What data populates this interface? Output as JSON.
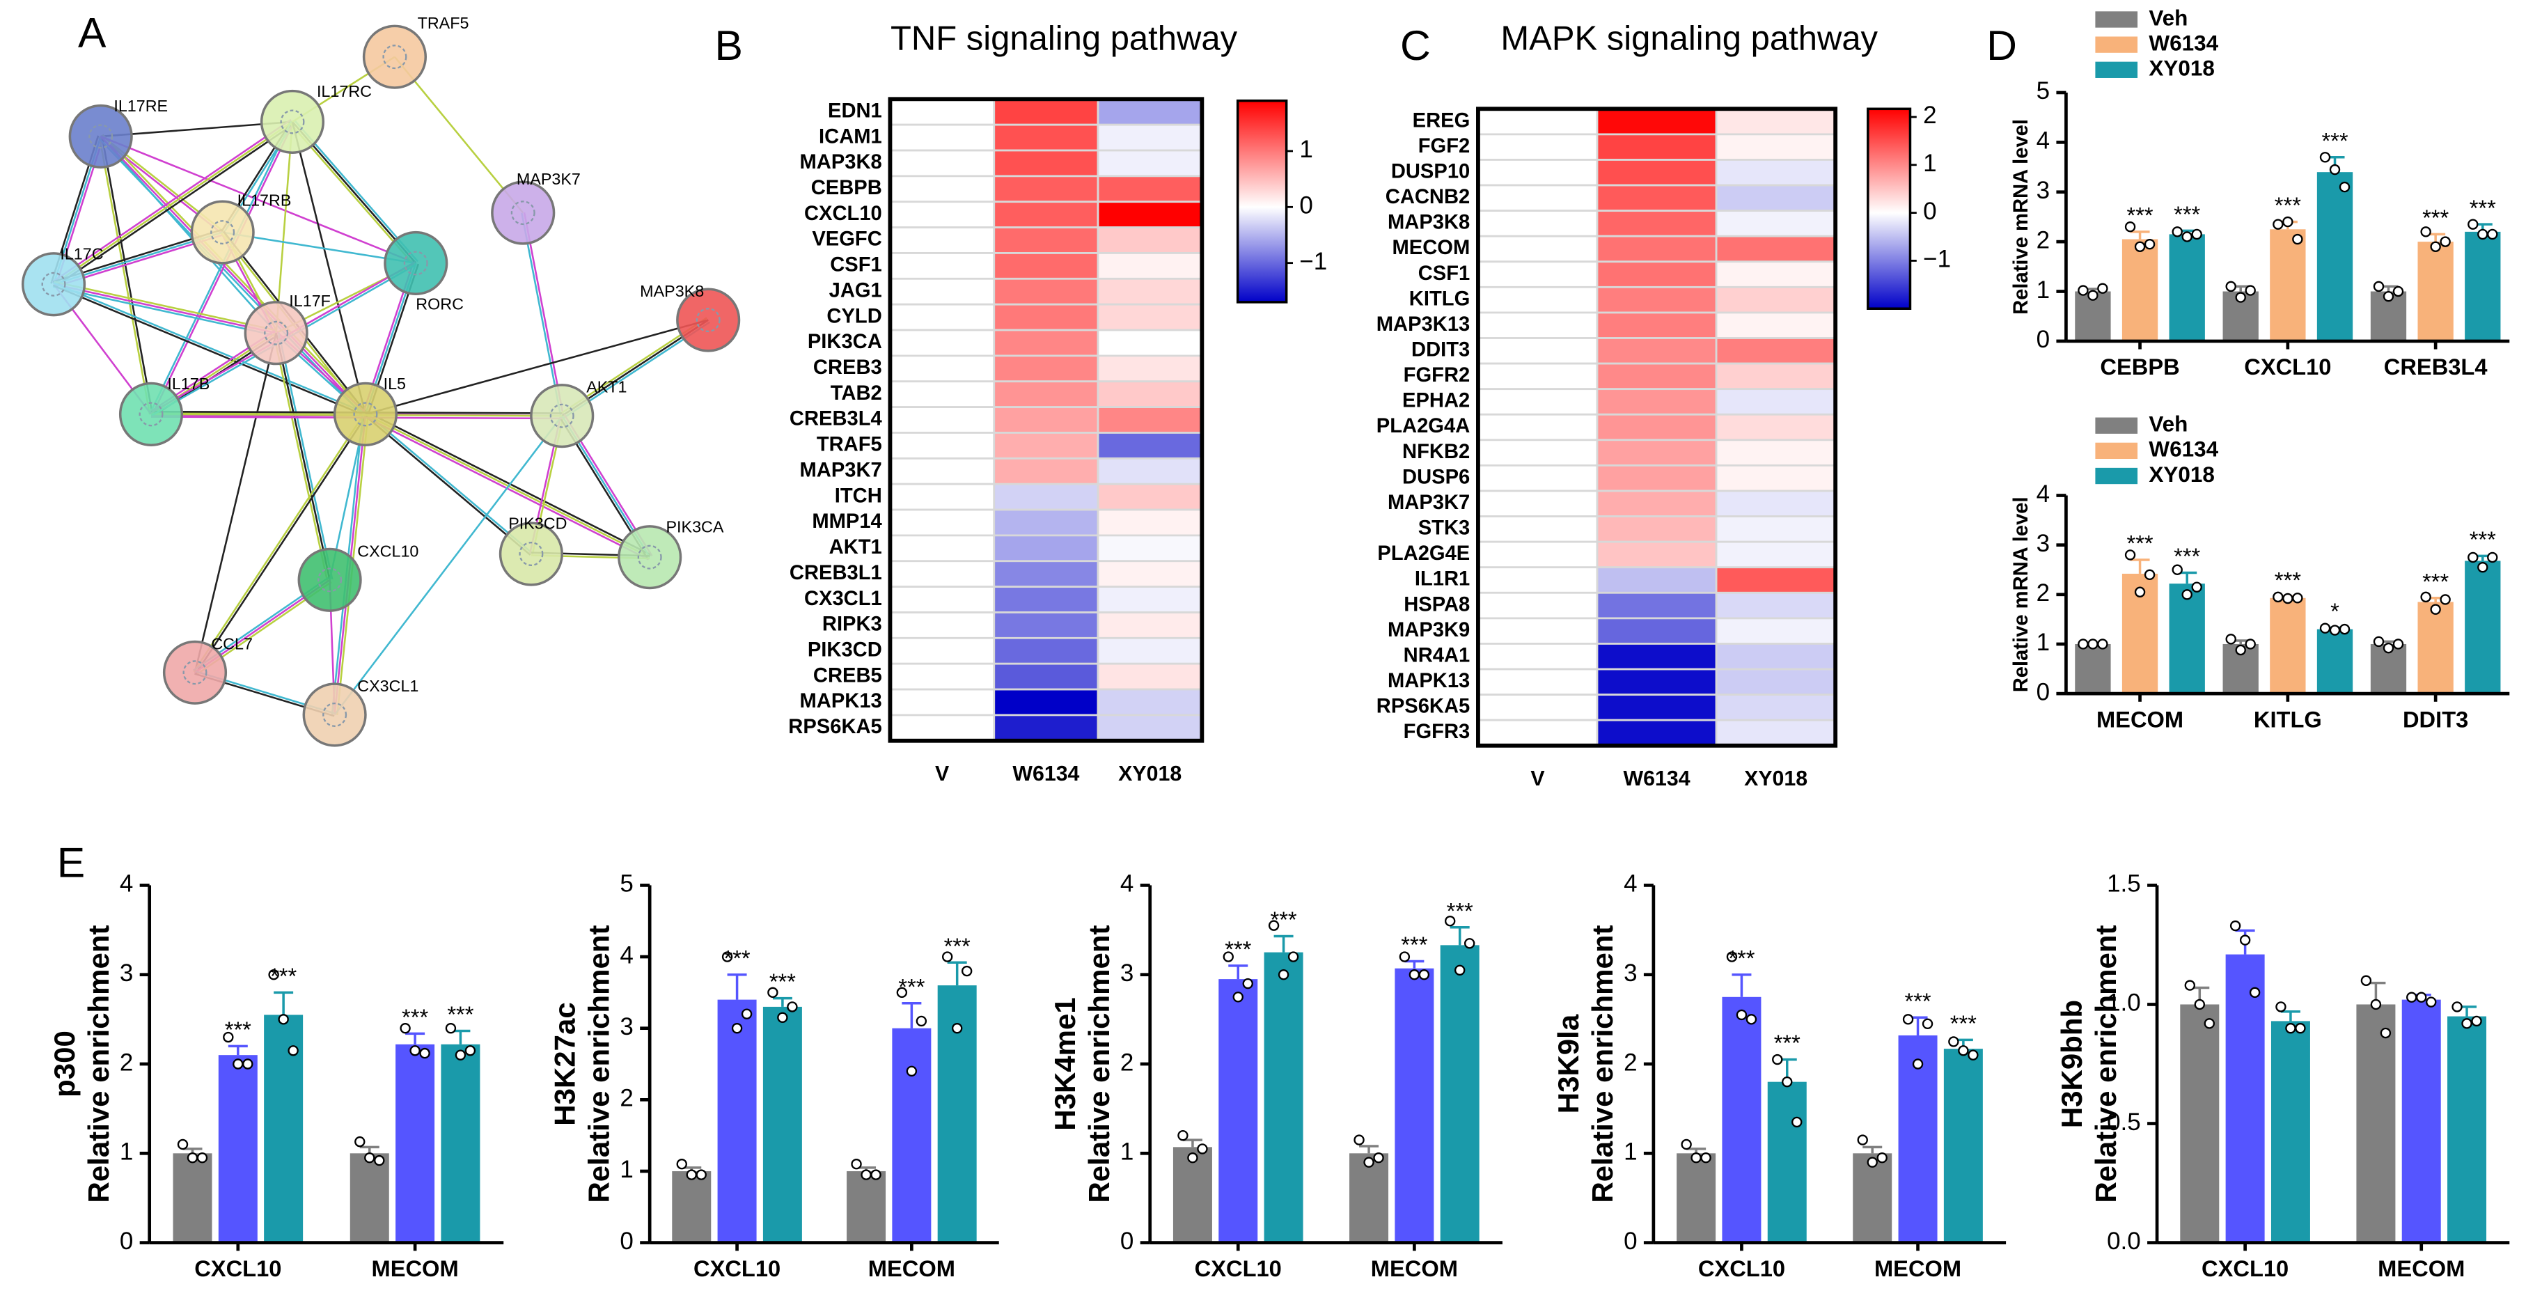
{
  "network": {
    "panel": "A",
    "nodes": [
      {
        "label": "TRAF5",
        "color": "#f5c9a0"
      },
      {
        "label": "IL17RC",
        "color": "#d9f0b0"
      },
      {
        "label": "IL17RE",
        "color": "#6a7fcc"
      },
      {
        "label": "MAP3K7",
        "color": "#c8a8e8"
      },
      {
        "label": "IL17RB",
        "color": "#f5e6b0"
      },
      {
        "label": "RORC",
        "color": "#40c0b0"
      },
      {
        "label": "IL17C",
        "color": "#a0e0f0"
      },
      {
        "label": "MAP3K8",
        "color": "#ee5555"
      },
      {
        "label": "IL17F",
        "color": "#f5c8c0"
      },
      {
        "label": "IL5",
        "color": "#d8d070"
      },
      {
        "label": "AKT1",
        "color": "#d8e8b8"
      },
      {
        "label": "IL17B",
        "color": "#70e0b0"
      },
      {
        "label": "PIK3CD",
        "color": "#d8e8a8"
      },
      {
        "label": "PIK3CA",
        "color": "#b8e8b0"
      },
      {
        "label": "CXCL10",
        "color": "#40c070"
      },
      {
        "label": "CCL7",
        "color": "#f0a8a8"
      },
      {
        "label": "CX3CL1",
        "color": "#f0d0b0"
      }
    ]
  },
  "chart_data": [
    {
      "type": "heatmap",
      "panel": "B",
      "title": "TNF signaling pathway",
      "columns": [
        "V",
        "W6134",
        "XY018"
      ],
      "rows": [
        "EDN1",
        "ICAM1",
        "MAP3K8",
        "CEBPB",
        "CXCL10",
        "VEGFC",
        "CSF1",
        "JAG1",
        "CYLD",
        "PIK3CA",
        "CREB3",
        "TAB2",
        "CREB3L4",
        "TRAF5",
        "MAP3K7",
        "ITCH",
        "MMP14",
        "AKT1",
        "CREB3L1",
        "CX3CL1",
        "RIPK3",
        "PIK3CD",
        "CREB5",
        "MAPK13",
        "RPS6KA5"
      ],
      "values": [
        [
          0,
          1.4,
          -0.6
        ],
        [
          0,
          1.3,
          -0.1
        ],
        [
          0,
          1.3,
          -0.1
        ],
        [
          0,
          1.2,
          1.2
        ],
        [
          0,
          1.2,
          1.9
        ],
        [
          0,
          1.1,
          0.4
        ],
        [
          0,
          1.1,
          0.1
        ],
        [
          0,
          1.0,
          0.3
        ],
        [
          0,
          1.0,
          0.3
        ],
        [
          0,
          0.9,
          0.0
        ],
        [
          0,
          0.9,
          0.2
        ],
        [
          0,
          0.8,
          0.4
        ],
        [
          0,
          0.7,
          0.9
        ],
        [
          0,
          0.6,
          -1.0
        ],
        [
          0,
          0.6,
          -0.2
        ],
        [
          0,
          -0.3,
          0.4
        ],
        [
          0,
          -0.5,
          0.1
        ],
        [
          0,
          -0.6,
          -0.05
        ],
        [
          0,
          -0.8,
          0.1
        ],
        [
          0,
          -0.9,
          -0.1
        ],
        [
          0,
          -0.9,
          0.15
        ],
        [
          0,
          -1.0,
          -0.1
        ],
        [
          0,
          -1.1,
          0.2
        ],
        [
          0,
          -1.7,
          -0.3
        ],
        [
          0,
          -1.5,
          -0.3
        ]
      ],
      "zlim": [
        -1.7,
        1.9
      ],
      "zticks": [
        1,
        0,
        {
          "value": -1,
          "label": "−1"
        }
      ]
    },
    {
      "type": "heatmap",
      "panel": "C",
      "title": "MAPK signaling pathway",
      "columns": [
        "V",
        "W6134",
        "XY018"
      ],
      "rows": [
        "EREG",
        "FGF2",
        "DUSP10",
        "CACNB2",
        "MAP3K8",
        "MECOM",
        "CSF1",
        "KITLG",
        "MAP3K13",
        "DDIT3",
        "FGFR2",
        "EPHA2",
        "PLA2G4A",
        "NFKB2",
        "DUSP6",
        "MAP3K7",
        "STK3",
        "PLA2G4E",
        "IL1R1",
        "HSPA8",
        "MAP3K9",
        "NR4A1",
        "MAPK13",
        "RPS6KA5",
        "FGFR3"
      ],
      "values": [
        [
          0,
          2.1,
          0.2
        ],
        [
          0,
          1.6,
          0.1
        ],
        [
          0,
          1.5,
          -0.2
        ],
        [
          0,
          1.4,
          -0.4
        ],
        [
          0,
          1.3,
          -0.1
        ],
        [
          0,
          1.2,
          1.2
        ],
        [
          0,
          1.2,
          0.1
        ],
        [
          0,
          1.1,
          0.4
        ],
        [
          0,
          1.1,
          0.1
        ],
        [
          0,
          1.0,
          1.1
        ],
        [
          0,
          1.0,
          0.4
        ],
        [
          0,
          0.9,
          -0.2
        ],
        [
          0,
          0.9,
          0.3
        ],
        [
          0,
          0.8,
          0.1
        ],
        [
          0,
          0.8,
          0.1
        ],
        [
          0,
          0.7,
          -0.2
        ],
        [
          0,
          0.6,
          -0.1
        ],
        [
          0,
          0.5,
          -0.1
        ],
        [
          0,
          -0.5,
          1.4
        ],
        [
          0,
          -1.1,
          -0.3
        ],
        [
          0,
          -1.2,
          -0.1
        ],
        [
          0,
          -1.9,
          -0.4
        ],
        [
          0,
          -1.9,
          -0.4
        ],
        [
          0,
          -1.9,
          -0.3
        ],
        [
          0,
          -1.9,
          -0.2
        ]
      ],
      "zlim": [
        -2.0,
        2.17
      ],
      "zticks": [
        2,
        1,
        0,
        {
          "value": -1,
          "label": "−1"
        }
      ]
    },
    {
      "type": "bar",
      "panel": "D",
      "ylabel": [
        "Relative mRNA level"
      ],
      "categories": [
        "CEBPB",
        "CXCL10",
        "CREB3L4"
      ],
      "ylim": [
        0,
        5
      ],
      "yticks": [
        0,
        1,
        2,
        3,
        4,
        5
      ],
      "series": [
        {
          "name": "Veh",
          "color": "#808080",
          "values": [
            1.0,
            1.0,
            1.0
          ],
          "errors": [
            0.05,
            0.1,
            0.1
          ],
          "points": [
            [
              1.02,
              0.92,
              1.06
            ],
            [
              1.1,
              0.88,
              1.02
            ],
            [
              1.1,
              0.9,
              1.0
            ]
          ]
        },
        {
          "name": "W6134",
          "color": "#f8b27a",
          "values": [
            2.05,
            2.25,
            2.0
          ],
          "errors": [
            0.15,
            0.15,
            0.15
          ],
          "points": [
            [
              2.3,
              1.9,
              1.95
            ],
            [
              2.35,
              2.4,
              2.05
            ],
            [
              2.2,
              1.9,
              2.0
            ]
          ],
          "stars": [
            "***",
            "***",
            "***"
          ]
        },
        {
          "name": "XY018",
          "color": "#1a9aaa",
          "values": [
            2.15,
            3.4,
            2.2
          ],
          "errors": [
            0.07,
            0.3,
            0.15
          ],
          "points": [
            [
              2.2,
              2.1,
              2.15
            ],
            [
              3.7,
              3.45,
              3.1
            ],
            [
              2.35,
              2.15,
              2.15
            ]
          ],
          "stars": [
            "***",
            "***",
            "***"
          ]
        }
      ]
    },
    {
      "type": "bar",
      "ylabel": [
        "Relative mRNA level"
      ],
      "categories": [
        "MECOM",
        "KITLG",
        "DDIT3"
      ],
      "ylim": [
        0,
        4
      ],
      "yticks": [
        0,
        1,
        2,
        3,
        4
      ],
      "series": [
        {
          "name": "Veh",
          "color": "#808080",
          "values": [
            1.0,
            1.0,
            1.0
          ],
          "errors": [
            0.02,
            0.07,
            0.05
          ],
          "points": [
            [
              1.0,
              1.0,
              1.0
            ],
            [
              1.1,
              0.88,
              1.0
            ],
            [
              1.05,
              0.92,
              1.0
            ]
          ]
        },
        {
          "name": "W6134",
          "color": "#f8b27a",
          "values": [
            2.42,
            1.93,
            1.85
          ],
          "errors": [
            0.28,
            0.03,
            0.08
          ],
          "points": [
            [
              2.8,
              2.05,
              2.4
            ],
            [
              1.95,
              1.92,
              1.93
            ],
            [
              1.95,
              1.7,
              1.9
            ]
          ],
          "stars": [
            "***",
            "***",
            "***"
          ]
        },
        {
          "name": "XY018",
          "color": "#1a9aaa",
          "values": [
            2.22,
            1.3,
            2.68
          ],
          "errors": [
            0.22,
            0.03,
            0.1
          ],
          "points": [
            [
              2.5,
              2.0,
              2.15
            ],
            [
              1.32,
              1.28,
              1.3
            ],
            [
              2.75,
              2.55,
              2.75
            ]
          ],
          "stars": [
            "***",
            "*",
            "***"
          ]
        }
      ]
    },
    {
      "type": "bar",
      "panel": "E",
      "ylabel": [
        "p300",
        "Relative enrichment"
      ],
      "categories": [
        "CXCL10",
        "MECOM"
      ],
      "ylim": [
        0,
        4
      ],
      "yticks": [
        0,
        1,
        2,
        3,
        4
      ],
      "series": [
        {
          "color": "#808080",
          "values": [
            1.0,
            1.0
          ],
          "errors": [
            0.05,
            0.07
          ],
          "points": [
            [
              1.1,
              0.95,
              0.95
            ],
            [
              1.13,
              0.95,
              0.92
            ]
          ]
        },
        {
          "color": "#5555ff",
          "values": [
            2.1,
            2.22
          ],
          "errors": [
            0.1,
            0.12
          ],
          "points": [
            [
              2.3,
              2.0,
              2.0
            ],
            [
              2.4,
              2.15,
              2.12
            ]
          ],
          "stars": [
            "***",
            "***"
          ]
        },
        {
          "color": "#1a9aaa",
          "values": [
            2.55,
            2.22
          ],
          "errors": [
            0.25,
            0.15
          ],
          "points": [
            [
              3.0,
              2.5,
              2.15
            ],
            [
              2.4,
              2.1,
              2.15
            ]
          ],
          "stars": [
            "***",
            "***"
          ]
        }
      ]
    },
    {
      "type": "bar",
      "ylabel": [
        "H3K27ac",
        "Relative enrichment"
      ],
      "categories": [
        "CXCL10",
        "MECOM"
      ],
      "ylim": [
        0,
        5
      ],
      "yticks": [
        0,
        1,
        2,
        3,
        4,
        5
      ],
      "series": [
        {
          "color": "#808080",
          "values": [
            1.0,
            1.0
          ],
          "errors": [
            0.05,
            0.05
          ],
          "points": [
            [
              1.1,
              0.95,
              0.95
            ],
            [
              1.1,
              0.95,
              0.95
            ]
          ]
        },
        {
          "color": "#5555ff",
          "values": [
            3.4,
            3.0
          ],
          "errors": [
            0.35,
            0.35
          ],
          "points": [
            [
              4.0,
              3.0,
              3.2
            ],
            [
              3.5,
              2.4,
              3.1
            ]
          ],
          "stars": [
            "***",
            "***"
          ]
        },
        {
          "color": "#1a9aaa",
          "values": [
            3.3,
            3.6
          ],
          "errors": [
            0.12,
            0.32
          ],
          "points": [
            [
              3.5,
              3.15,
              3.3
            ],
            [
              4.0,
              3.0,
              3.8
            ]
          ],
          "stars": [
            "***",
            "***"
          ]
        }
      ]
    },
    {
      "type": "bar",
      "ylabel": [
        "H3K4me1",
        "Relative enrichment"
      ],
      "categories": [
        "CXCL10",
        "MECOM"
      ],
      "ylim": [
        0,
        4
      ],
      "yticks": [
        0,
        1,
        2,
        3,
        4
      ],
      "series": [
        {
          "color": "#808080",
          "values": [
            1.07,
            1.0
          ],
          "errors": [
            0.08,
            0.08
          ],
          "points": [
            [
              1.2,
              0.95,
              1.05
            ],
            [
              1.15,
              0.9,
              0.95
            ]
          ]
        },
        {
          "color": "#5555ff",
          "values": [
            2.95,
            3.07
          ],
          "errors": [
            0.15,
            0.08
          ],
          "points": [
            [
              3.2,
              2.75,
              2.9
            ],
            [
              3.2,
              3.0,
              3.0
            ]
          ],
          "stars": [
            "***",
            "***"
          ]
        },
        {
          "color": "#1a9aaa",
          "values": [
            3.25,
            3.33
          ],
          "errors": [
            0.18,
            0.2
          ],
          "points": [
            [
              3.55,
              3.0,
              3.2
            ],
            [
              3.6,
              3.05,
              3.35
            ]
          ],
          "stars": [
            "***",
            "***"
          ]
        }
      ]
    },
    {
      "type": "bar",
      "ylabel": [
        "H3K9la",
        "Relative enrichment"
      ],
      "categories": [
        "CXCL10",
        "MECOM"
      ],
      "ylim": [
        0,
        4
      ],
      "yticks": [
        0,
        1,
        2,
        3,
        4
      ],
      "series": [
        {
          "color": "#808080",
          "values": [
            1.0,
            1.0
          ],
          "errors": [
            0.05,
            0.07
          ],
          "points": [
            [
              1.1,
              0.95,
              0.95
            ],
            [
              1.15,
              0.9,
              0.95
            ]
          ]
        },
        {
          "color": "#5555ff",
          "values": [
            2.75,
            2.32
          ],
          "errors": [
            0.25,
            0.2
          ],
          "points": [
            [
              3.2,
              2.55,
              2.5
            ],
            [
              2.5,
              2.0,
              2.45
            ]
          ],
          "stars": [
            "***",
            "***"
          ]
        },
        {
          "color": "#1a9aaa",
          "values": [
            1.8,
            2.17
          ],
          "errors": [
            0.25,
            0.1
          ],
          "points": [
            [
              2.05,
              1.8,
              1.35
            ],
            [
              2.25,
              2.15,
              2.1
            ]
          ],
          "stars": [
            "***",
            "***"
          ]
        }
      ]
    },
    {
      "type": "bar",
      "ylabel": [
        "H3K9bhb",
        "Relative enrichment"
      ],
      "categories": [
        "CXCL10",
        "MECOM"
      ],
      "ylim": [
        0,
        1.5
      ],
      "yticks": [
        {
          "value": 0,
          "label": "0.0"
        },
        0.5,
        {
          "value": 1,
          "label": "1.0"
        },
        1.5
      ],
      "series": [
        {
          "color": "#808080",
          "values": [
            1.0,
            1.0
          ],
          "errors": [
            0.07,
            0.09
          ],
          "points": [
            [
              1.08,
              1.0,
              0.92
            ],
            [
              1.1,
              1.0,
              0.88
            ]
          ]
        },
        {
          "color": "#5555ff",
          "values": [
            1.21,
            1.02
          ],
          "errors": [
            0.1,
            0.02
          ],
          "points": [
            [
              1.33,
              1.27,
              1.05
            ],
            [
              1.03,
              1.03,
              1.01
            ]
          ]
        },
        {
          "color": "#1a9aaa",
          "values": [
            0.93,
            0.95
          ],
          "errors": [
            0.04,
            0.04
          ],
          "points": [
            [
              0.99,
              0.9,
              0.9
            ],
            [
              0.99,
              0.92,
              0.93
            ]
          ]
        }
      ]
    }
  ]
}
